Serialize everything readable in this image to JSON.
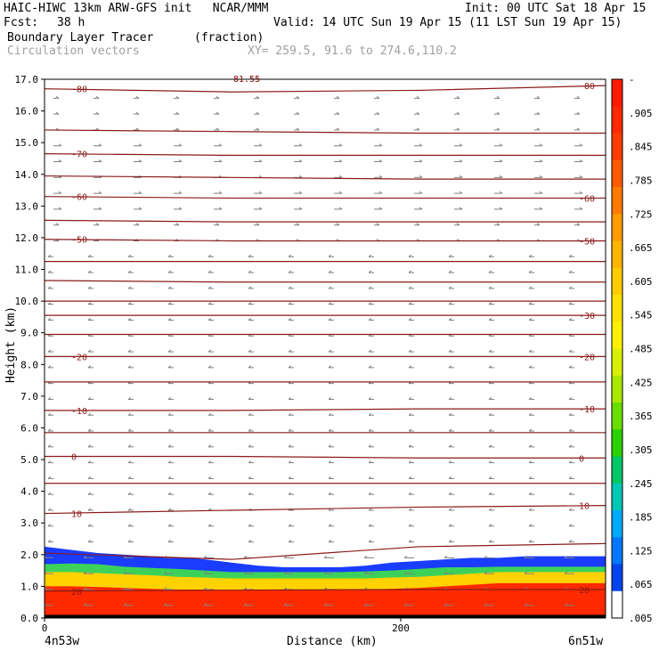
{
  "header": {
    "title": "HAIC-HIWC 13km ARW-GFS init   NCAR/MMM",
    "init": "Init: 00 UTC Sat 18 Apr 15",
    "fcst_label": "Fcst:",
    "fcst_value": "38 h",
    "valid": "Valid: 14 UTC Sun 19 Apr 15 (11 LST Sun 19 Apr 15)",
    "field": "Boundary Layer Tracer",
    "units": "(fraction)",
    "overlay": "Circulation vectors",
    "xy": "XY= 259.5, 91.6 to 274.6,110.2"
  },
  "top_clipped_label": "81.55",
  "chart_data": {
    "type": "heatmap",
    "xlabel": "Distance (km)",
    "ylabel": "Height (km)",
    "xlim": [
      0,
      315
    ],
    "ylim": [
      0,
      17
    ],
    "x_ticks": [
      {
        "v": 0,
        "label": "0"
      },
      {
        "v": 200,
        "label": "200"
      }
    ],
    "x_end_labels": {
      "left": "4n53w",
      "right": "6n51w"
    },
    "y_ticks": [
      {
        "v": 0,
        "label": "0.0"
      },
      {
        "v": 1,
        "label": "1.0"
      },
      {
        "v": 2,
        "label": "2.0"
      },
      {
        "v": 3,
        "label": "3.0"
      },
      {
        "v": 4,
        "label": "4.0"
      },
      {
        "v": 5,
        "label": "5.0"
      },
      {
        "v": 6,
        "label": "6.0"
      },
      {
        "v": 7,
        "label": "7.0"
      },
      {
        "v": 8,
        "label": "8.0"
      },
      {
        "v": 9,
        "label": "9.0"
      },
      {
        "v": 10,
        "label": "10.0"
      },
      {
        "v": 11,
        "label": "11.0"
      },
      {
        "v": 12,
        "label": "12.0"
      },
      {
        "v": 13,
        "label": "13.0"
      },
      {
        "v": 14,
        "label": "14.0"
      },
      {
        "v": 15,
        "label": "15.0"
      },
      {
        "v": 16,
        "label": "16.0"
      },
      {
        "v": 17,
        "label": "17.0"
      }
    ],
    "colorbar": {
      "labels": [
        "-",
        ".905",
        ".845",
        ".785",
        ".725",
        ".665",
        ".605",
        ".545",
        ".485",
        ".425",
        ".365",
        ".305",
        ".245",
        ".185",
        ".125",
        ".065",
        ".005"
      ],
      "colors": [
        "#ff1a00",
        "#ff2a00",
        "#ff3c00",
        "#ff5a00",
        "#ff7a00",
        "#ff9a00",
        "#ffb400",
        "#ffcc00",
        "#ffe000",
        "#fff000",
        "#d8f000",
        "#a8e800",
        "#6ade00",
        "#2ad200",
        "#00c866",
        "#00c8b4",
        "#00aaff",
        "#0078ff",
        "#0044ee",
        "#ffffff"
      ]
    },
    "tracer_profile": {
      "x": [
        0,
        15,
        30,
        45,
        60,
        75,
        90,
        105,
        120,
        135,
        150,
        165,
        180,
        195,
        210,
        225,
        240,
        255,
        270,
        285,
        300,
        315
      ],
      "top_km": [
        2.25,
        2.15,
        2.05,
        2.0,
        1.95,
        1.92,
        1.85,
        1.75,
        1.65,
        1.6,
        1.6,
        1.6,
        1.65,
        1.75,
        1.8,
        1.85,
        1.9,
        1.9,
        1.95,
        1.95,
        1.95,
        1.95
      ],
      "green_top_km": [
        1.7,
        1.72,
        1.7,
        1.62,
        1.58,
        1.55,
        1.5,
        1.45,
        1.45,
        1.45,
        1.45,
        1.45,
        1.47,
        1.5,
        1.55,
        1.6,
        1.6,
        1.62,
        1.62,
        1.62,
        1.62,
        1.62
      ],
      "yellow_top_km": [
        1.45,
        1.45,
        1.42,
        1.38,
        1.35,
        1.3,
        1.28,
        1.25,
        1.25,
        1.25,
        1.25,
        1.25,
        1.25,
        1.28,
        1.3,
        1.35,
        1.4,
        1.45,
        1.45,
        1.45,
        1.45,
        1.45
      ],
      "red_top_km": [
        1.0,
        1.0,
        0.98,
        0.95,
        0.92,
        0.9,
        0.9,
        0.88,
        0.88,
        0.88,
        0.88,
        0.9,
        0.9,
        0.92,
        0.95,
        1.0,
        1.05,
        1.1,
        1.1,
        1.1,
        1.1,
        1.1
      ]
    },
    "contours": [
      {
        "label": "-80",
        "y": [
          16.7,
          16.6,
          16.65,
          16.8
        ],
        "label_left": true,
        "label_right": true
      },
      {
        "label": "",
        "y": [
          15.4,
          15.35,
          15.3,
          15.3
        ],
        "label_left": false,
        "label_right": false
      },
      {
        "label": "-70",
        "y": [
          14.65,
          14.6,
          14.6,
          14.6
        ],
        "label_left": true,
        "label_right": false
      },
      {
        "label": "",
        "y": [
          13.95,
          13.9,
          13.85,
          13.85
        ],
        "label_left": false,
        "label_right": false
      },
      {
        "label": "-60",
        "y": [
          13.3,
          13.25,
          13.25,
          13.25
        ],
        "label_left": true,
        "label_right": true
      },
      {
        "label": "",
        "y": [
          12.55,
          12.5,
          12.5,
          12.5
        ],
        "label_left": false,
        "label_right": false
      },
      {
        "label": "-50",
        "y": [
          11.95,
          11.9,
          11.9,
          11.9
        ],
        "label_left": true,
        "label_right": true
      },
      {
        "label": "",
        "y": [
          11.25,
          11.25,
          11.25,
          11.25
        ],
        "label_left": false,
        "label_right": false
      },
      {
        "label": "",
        "y": [
          10.65,
          10.6,
          10.6,
          10.6
        ],
        "label_left": false,
        "label_right": false
      },
      {
        "label": "",
        "y": [
          10.0,
          10.0,
          10.0,
          10.0
        ],
        "label_left": false,
        "label_right": false
      },
      {
        "label": "-30",
        "y": [
          9.55,
          9.55,
          9.55,
          9.55
        ],
        "label_left": false,
        "label_right": true
      },
      {
        "label": "",
        "y": [
          8.95,
          8.95,
          8.95,
          8.95
        ],
        "label_left": false,
        "label_right": false
      },
      {
        "label": "-20",
        "y": [
          8.25,
          8.25,
          8.25,
          8.25
        ],
        "label_left": true,
        "label_right": true
      },
      {
        "label": "",
        "y": [
          7.45,
          7.45,
          7.45,
          7.45
        ],
        "label_left": false,
        "label_right": false
      },
      {
        "label": "-10",
        "y": [
          6.55,
          6.55,
          6.6,
          6.6
        ],
        "label_left": true,
        "label_right": true
      },
      {
        "label": "",
        "y": [
          5.85,
          5.85,
          5.85,
          5.85
        ],
        "label_left": false,
        "label_right": false
      },
      {
        "label": "0",
        "y": [
          5.1,
          5.1,
          5.05,
          5.05
        ],
        "label_left": true,
        "label_right": true
      },
      {
        "label": "",
        "y": [
          4.25,
          4.25,
          4.25,
          4.25
        ],
        "label_left": false,
        "label_right": false
      },
      {
        "label": "10",
        "y": [
          3.3,
          3.4,
          3.5,
          3.55
        ],
        "label_left": true,
        "label_right": true
      },
      {
        "label": "",
        "y": [
          2.05,
          1.85,
          2.25,
          2.35
        ],
        "label_left": false,
        "label_right": false
      },
      {
        "label": "20",
        "y": [
          0.85,
          0.88,
          0.9,
          0.9
        ],
        "label_left": true,
        "label_right": true
      }
    ]
  }
}
